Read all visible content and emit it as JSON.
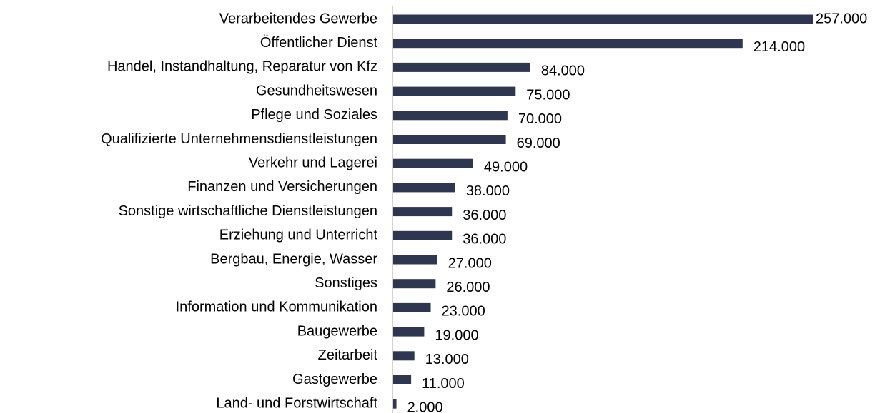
{
  "chart_data": {
    "type": "bar",
    "orientation": "horizontal",
    "categories": [
      "Verarbeitendes Gewerbe",
      "Öffentlicher Dienst",
      "Handel, Instandhaltung, Reparatur von Kfz",
      "Gesundheitswesen",
      "Pflege und Soziales",
      "Qualifizierte Unternehmensdienstleistungen",
      "Verkehr und Lagerei",
      "Finanzen und Versicherungen",
      "Sonstige wirtschaftliche Dienstleistungen",
      "Erziehung und Unterricht",
      "Bergbau, Energie, Wasser",
      "Sonstiges",
      "Information und Kommunikation",
      "Baugewerbe",
      "Zeitarbeit",
      "Gastgewerbe",
      "Land- und Forstwirtschaft"
    ],
    "values": [
      257000,
      214000,
      84000,
      75000,
      70000,
      69000,
      49000,
      38000,
      36000,
      36000,
      27000,
      26000,
      23000,
      19000,
      13000,
      11000,
      2000
    ],
    "value_labels": [
      "257.000",
      "214.000",
      "84.000",
      "75.000",
      "70.000",
      "69.000",
      "49.000",
      "38.000",
      "36.000",
      "36.000",
      "27.000",
      "26.000",
      "23.000",
      "19.000",
      "13.000",
      "11.000",
      "2.000"
    ],
    "color": "#2f3650"
  }
}
